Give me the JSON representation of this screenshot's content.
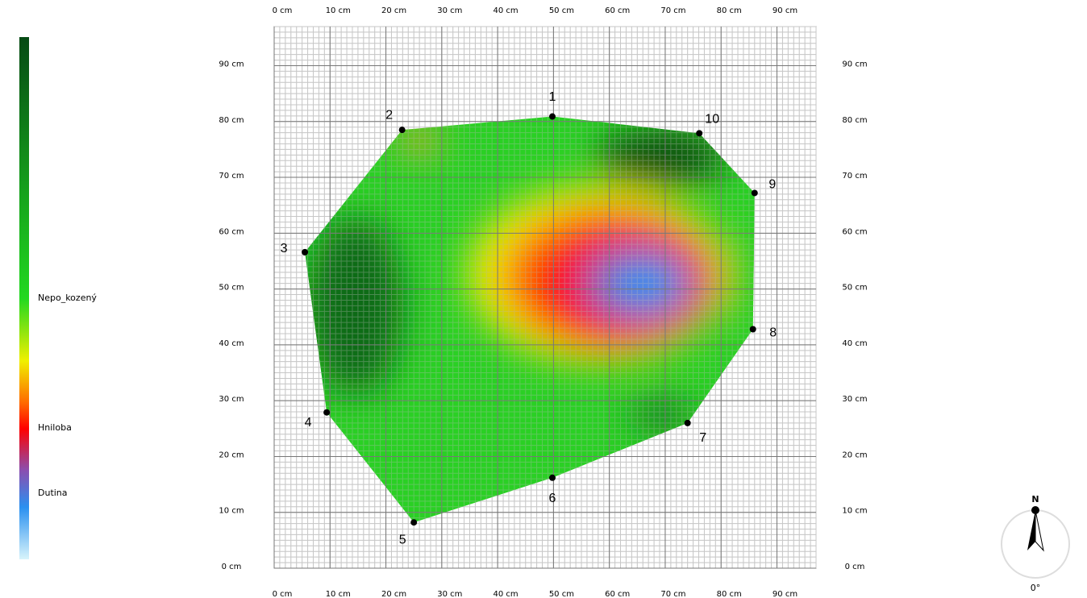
{
  "chart_data": {
    "type": "scatter",
    "labels": [
      "1",
      "2",
      "3",
      "4",
      "5",
      "6",
      "7",
      "8",
      "9",
      "10"
    ],
    "x": [
      49.8,
      22.9,
      5.5,
      9.4,
      25.0,
      49.8,
      74.0,
      85.7,
      86.0,
      76.1
    ],
    "values": [
      80.9,
      78.5,
      56.6,
      27.9,
      8.2,
      16.2,
      26.0,
      42.8,
      67.2,
      77.9
    ],
    "color": "#000000",
    "xlim": [
      0,
      97
    ],
    "ylim": [
      0,
      97
    ],
    "xticks": [
      {
        "value": 0,
        "label": "0 cm"
      },
      {
        "value": 10,
        "label": "10 cm"
      },
      {
        "value": 20,
        "label": "20 cm"
      },
      {
        "value": 30,
        "label": "30 cm"
      },
      {
        "value": 40,
        "label": "40 cm"
      },
      {
        "value": 50,
        "label": "50 cm"
      },
      {
        "value": 60,
        "label": "60 cm"
      },
      {
        "value": 70,
        "label": "70 cm"
      },
      {
        "value": 80,
        "label": "80 cm"
      },
      {
        "value": 90,
        "label": "90 cm"
      }
    ],
    "yticks": [
      {
        "value": 0,
        "label": "0 cm"
      },
      {
        "value": 10,
        "label": "10 cm"
      },
      {
        "value": 20,
        "label": "20 cm"
      },
      {
        "value": 30,
        "label": "30 cm"
      },
      {
        "value": 40,
        "label": "40 cm"
      },
      {
        "value": 50,
        "label": "50 cm"
      },
      {
        "value": 60,
        "label": "60 cm"
      },
      {
        "value": 70,
        "label": "70 cm"
      },
      {
        "value": 80,
        "label": "80 cm"
      },
      {
        "value": 90,
        "label": "90 cm"
      }
    ],
    "grid": true,
    "legend_labels": [
      "Nepo_kozený",
      "Hniloba",
      "Dutina"
    ],
    "compass": {
      "north": "N",
      "angle": "0°"
    }
  }
}
